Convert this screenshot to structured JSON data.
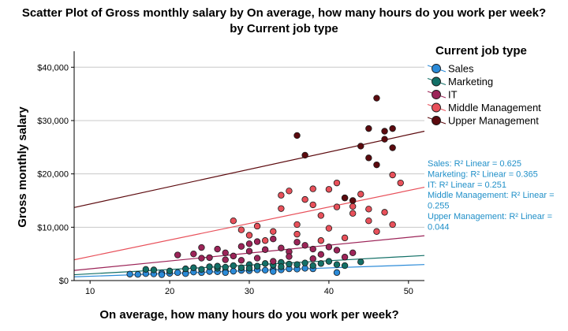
{
  "chart_data": {
    "type": "scatter",
    "title_line1": "Scatter Plot of Gross monthly salary by On average, how many hours do you work per week?",
    "title_line2": "by Current job type",
    "xlabel": "On average, how many hours do you work per week?",
    "ylabel": "Gross monthly salary",
    "xlim": [
      8,
      52
    ],
    "ylim": [
      0,
      43000
    ],
    "x_ticks": [
      10,
      20,
      30,
      40,
      50
    ],
    "y_ticks": [
      {
        "value": 0,
        "label": "$0"
      },
      {
        "value": 10000,
        "label": "$10,000"
      },
      {
        "value": 20000,
        "label": "$20,000"
      },
      {
        "value": 30000,
        "label": "$30,000"
      },
      {
        "value": 40000,
        "label": "$40,000"
      }
    ],
    "grid": "horizontal",
    "legend_title": "Current job type",
    "legend_position": "right",
    "series": [
      {
        "name": "Sales",
        "color": "#2a8ad8",
        "fit": {
          "x0": 8,
          "y0": 700,
          "x1": 52,
          "y1": 3000
        },
        "r2_lines": [
          "Sales: R² Linear = 0.625"
        ],
        "points": [
          [
            15,
            1200
          ],
          [
            16,
            1150
          ],
          [
            17,
            1300
          ],
          [
            18,
            1250
          ],
          [
            19,
            1400
          ],
          [
            20,
            1350
          ],
          [
            21,
            1500
          ],
          [
            22,
            1400
          ],
          [
            23,
            1600
          ],
          [
            24,
            1500
          ],
          [
            25,
            1700
          ],
          [
            26,
            1650
          ],
          [
            27,
            1800
          ],
          [
            28,
            1750
          ],
          [
            29,
            1900
          ],
          [
            30,
            1850
          ],
          [
            31,
            2000
          ],
          [
            32,
            1950
          ],
          [
            33,
            2100
          ],
          [
            34,
            2000
          ],
          [
            35,
            2200
          ],
          [
            36,
            2150
          ],
          [
            37,
            2300
          ],
          [
            38,
            2200
          ],
          [
            41,
            1500
          ],
          [
            19,
            1100
          ],
          [
            22,
            1300
          ],
          [
            27,
            1500
          ],
          [
            33,
            1700
          ]
        ]
      },
      {
        "name": "Marketing",
        "color": "#137067",
        "fit": {
          "x0": 8,
          "y0": 1100,
          "x1": 52,
          "y1": 4700
        },
        "r2_lines": [
          "Marketing: R² Linear = 0.365"
        ],
        "points": [
          [
            18,
            2000
          ],
          [
            20,
            1800
          ],
          [
            22,
            2200
          ],
          [
            23,
            2400
          ],
          [
            24,
            2100
          ],
          [
            25,
            2600
          ],
          [
            26,
            2300
          ],
          [
            27,
            2500
          ],
          [
            28,
            2800
          ],
          [
            29,
            2400
          ],
          [
            30,
            3000
          ],
          [
            31,
            2700
          ],
          [
            32,
            3200
          ],
          [
            33,
            2900
          ],
          [
            34,
            3400
          ],
          [
            35,
            3100
          ],
          [
            36,
            3000
          ],
          [
            37,
            3300
          ],
          [
            38,
            2800
          ],
          [
            39,
            3200
          ],
          [
            40,
            3600
          ],
          [
            41,
            3000
          ],
          [
            42,
            2800
          ],
          [
            44,
            3500
          ],
          [
            26,
            2700
          ],
          [
            30,
            2300
          ],
          [
            34,
            2600
          ],
          [
            17,
            2100
          ]
        ]
      },
      {
        "name": "IT",
        "color": "#9c2458",
        "fit": {
          "x0": 8,
          "y0": 1900,
          "x1": 52,
          "y1": 8400
        },
        "r2_lines": [
          "IT: R² Linear = 0.251"
        ],
        "points": [
          [
            21,
            4800
          ],
          [
            23,
            5000
          ],
          [
            24,
            6200
          ],
          [
            25,
            4300
          ],
          [
            26,
            5900
          ],
          [
            27,
            5200
          ],
          [
            28,
            4600
          ],
          [
            29,
            6400
          ],
          [
            30,
            5500
          ],
          [
            30,
            6900
          ],
          [
            31,
            7300
          ],
          [
            32,
            5800
          ],
          [
            33,
            7800
          ],
          [
            34,
            6100
          ],
          [
            35,
            5400
          ],
          [
            36,
            7200
          ],
          [
            37,
            6600
          ],
          [
            38,
            5900
          ],
          [
            39,
            4900
          ],
          [
            40,
            6300
          ],
          [
            41,
            5700
          ],
          [
            43,
            5200
          ],
          [
            24,
            4200
          ],
          [
            27,
            3900
          ],
          [
            31,
            4200
          ],
          [
            35,
            4500
          ],
          [
            38,
            4100
          ],
          [
            42,
            4400
          ],
          [
            33,
            3600
          ],
          [
            29,
            3800
          ]
        ]
      },
      {
        "name": "Middle Management",
        "color": "#e8505a",
        "fit": {
          "x0": 8,
          "y0": 3900,
          "x1": 52,
          "y1": 17500
        },
        "r2_lines": [
          "Middle Management: R² Linear =",
          "0.255"
        ],
        "points": [
          [
            28,
            11200
          ],
          [
            30,
            8500
          ],
          [
            32,
            7500
          ],
          [
            33,
            9200
          ],
          [
            34,
            13500
          ],
          [
            35,
            16800
          ],
          [
            36,
            10500
          ],
          [
            37,
            15200
          ],
          [
            38,
            17200
          ],
          [
            39,
            12200
          ],
          [
            40,
            9800
          ],
          [
            41,
            13800
          ],
          [
            42,
            15500
          ],
          [
            43,
            12600
          ],
          [
            44,
            16200
          ],
          [
            45,
            11200
          ],
          [
            45,
            13400
          ],
          [
            46,
            9200
          ],
          [
            47,
            12800
          ],
          [
            48,
            19800
          ],
          [
            49,
            18300
          ],
          [
            48,
            10500
          ],
          [
            29,
            9500
          ],
          [
            31,
            10200
          ],
          [
            34,
            16000
          ],
          [
            36,
            8700
          ],
          [
            38,
            14200
          ],
          [
            40,
            17100
          ],
          [
            41,
            18300
          ],
          [
            43,
            13900
          ],
          [
            39,
            7500
          ],
          [
            42,
            8000
          ]
        ]
      },
      {
        "name": "Upper Management",
        "color": "#5c0a0e",
        "fit": {
          "x0": 8,
          "y0": 13700,
          "x1": 52,
          "y1": 28000
        },
        "r2_lines": [
          "Upper Management: R² Linear =",
          "0.044"
        ],
        "points": [
          [
            36,
            27200
          ],
          [
            37,
            23500
          ],
          [
            42,
            15500
          ],
          [
            43,
            15000
          ],
          [
            44,
            25200
          ],
          [
            45,
            23000
          ],
          [
            45,
            28500
          ],
          [
            46,
            34200
          ],
          [
            46,
            21700
          ],
          [
            47,
            26500
          ],
          [
            47,
            28000
          ],
          [
            48,
            24900
          ],
          [
            48,
            28500
          ]
        ]
      }
    ]
  }
}
